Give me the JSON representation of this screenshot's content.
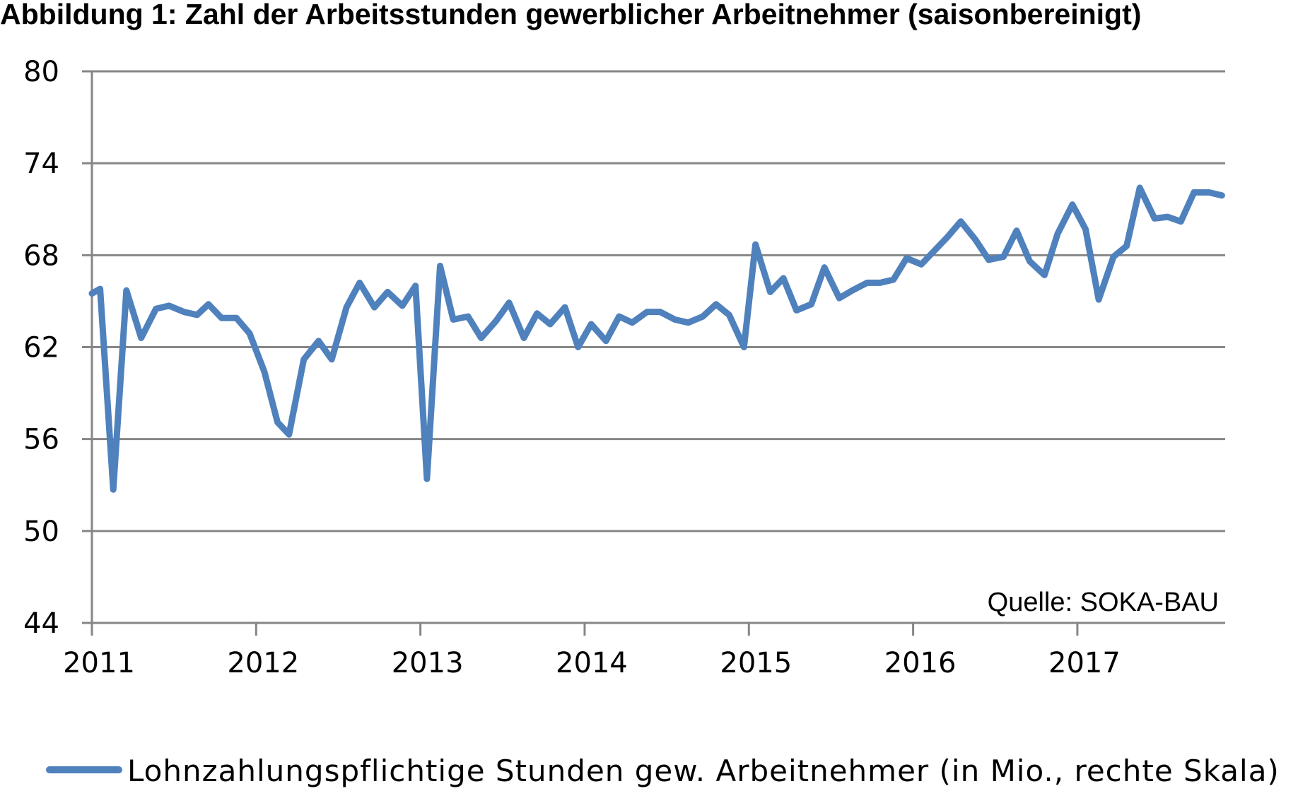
{
  "chart_data": {
    "type": "line",
    "title": "Abbildung 1: Zahl der Arbeitsstunden gewerblicher Arbeitnehmer (saisonbereinigt)",
    "source": "Quelle: SOKA-BAU",
    "ylim": [
      44,
      80
    ],
    "yticks": [
      "80",
      "74",
      "68",
      "62",
      "56",
      "50",
      "44"
    ],
    "xlim": [
      2011.0,
      2017.9
    ],
    "xticks": [
      "2011",
      "2012",
      "2013",
      "2014",
      "2015",
      "2016",
      "2017"
    ],
    "grid": true,
    "legend_position": "bottom",
    "series": [
      {
        "name": "Lohnzahlungspflichtige Stunden gew. Arbeitnehmer (in Mio., rechte Skala)",
        "color": "#4f81bd",
        "x": [
          2011.0,
          2011.05,
          2011.13,
          2011.21,
          2011.3,
          2011.39,
          2011.47,
          2011.56,
          2011.64,
          2011.71,
          2011.79,
          2011.88,
          2011.96,
          2012.05,
          2012.13,
          2012.2,
          2012.29,
          2012.38,
          2012.46,
          2012.55,
          2012.63,
          2012.72,
          2012.8,
          2012.89,
          2012.97,
          2013.04,
          2013.12,
          2013.2,
          2013.29,
          2013.37,
          2013.46,
          2013.54,
          2013.63,
          2013.71,
          2013.79,
          2013.88,
          2013.96,
          2014.04,
          2014.13,
          2014.21,
          2014.29,
          2014.38,
          2014.46,
          2014.55,
          2014.63,
          2014.72,
          2014.8,
          2014.88,
          2014.97,
          2015.04,
          2015.13,
          2015.21,
          2015.29,
          2015.38,
          2015.46,
          2015.55,
          2015.63,
          2015.72,
          2015.8,
          2015.88,
          2015.96,
          2016.05,
          2016.13,
          2016.21,
          2016.29,
          2016.38,
          2016.46,
          2016.55,
          2016.63,
          2016.71,
          2016.8,
          2016.88,
          2016.97,
          2017.05,
          2017.13,
          2017.22,
          2017.3,
          2017.38,
          2017.47,
          2017.55,
          2017.63,
          2017.71,
          2017.8,
          2017.88
        ],
        "y": [
          65.5,
          65.8,
          52.7,
          65.7,
          62.6,
          64.5,
          64.7,
          64.3,
          64.1,
          64.8,
          63.9,
          63.9,
          62.9,
          60.4,
          57.1,
          56.3,
          61.2,
          62.4,
          61.2,
          64.6,
          66.2,
          64.6,
          65.6,
          64.7,
          66.0,
          53.4,
          67.3,
          63.8,
          64.0,
          62.6,
          63.7,
          64.9,
          62.6,
          64.2,
          63.5,
          64.6,
          62.0,
          63.5,
          62.4,
          64.0,
          63.6,
          64.3,
          64.3,
          63.8,
          63.6,
          64.0,
          64.8,
          64.1,
          62.0,
          68.7,
          65.6,
          66.5,
          64.4,
          64.8,
          67.2,
          65.2,
          65.7,
          66.2,
          66.2,
          66.4,
          67.8,
          67.4,
          68.3,
          69.2,
          70.2,
          69.0,
          67.7,
          67.9,
          69.6,
          67.6,
          66.7,
          69.4,
          71.3,
          69.7,
          65.1,
          67.9,
          68.6,
          72.4,
          70.4,
          70.5,
          70.2,
          72.1,
          72.1,
          71.9
        ]
      }
    ]
  }
}
